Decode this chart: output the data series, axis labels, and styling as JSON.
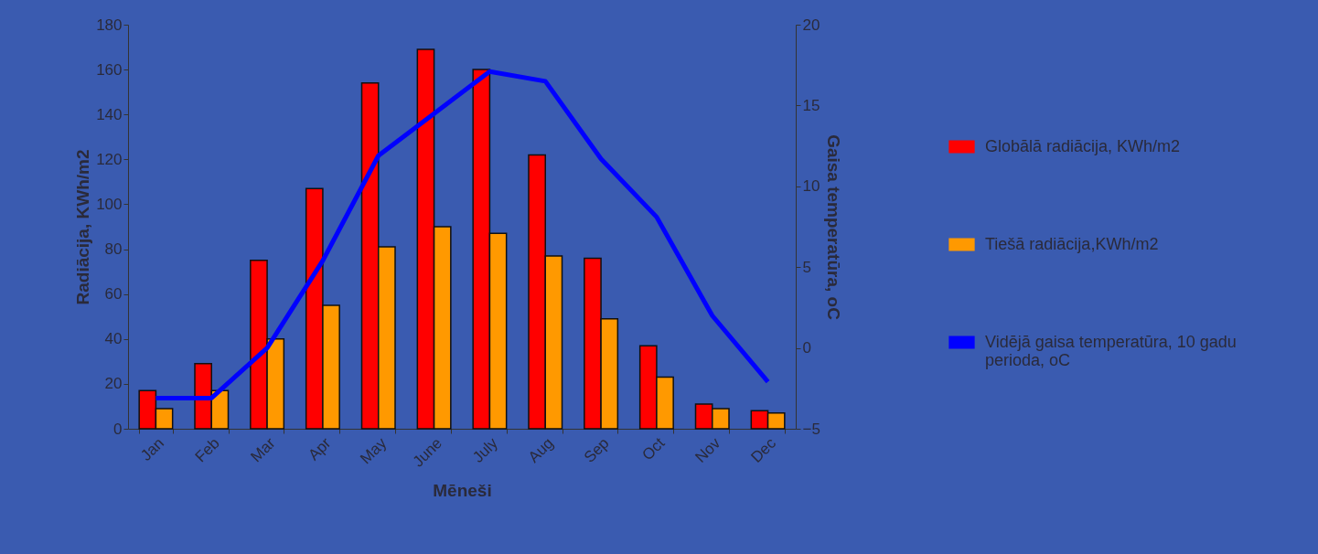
{
  "chart_data": {
    "type": "bar",
    "xlabel": "Mēneši",
    "ylabel": "Radiācija, KWh/m2",
    "y2label": "Gaisa temperatūra, oC",
    "categories": [
      "Jan",
      "Feb",
      "Mar",
      "Apr",
      "May",
      "June",
      "July",
      "Aug",
      "Sep",
      "Oct",
      "Nov",
      "Dec"
    ],
    "series": [
      {
        "name": "Globālā radiācija, KWh/m2",
        "color": "#ff0000",
        "values": [
          17,
          29,
          75,
          107,
          154,
          169,
          160,
          122,
          76,
          37,
          11,
          8
        ]
      },
      {
        "name": "Tiešā radiācija,KWh/m2",
        "color": "#ff9900",
        "values": [
          9,
          17,
          40,
          55,
          81,
          90,
          87,
          77,
          49,
          23,
          9,
          7
        ]
      },
      {
        "name": "Vidējā gaisa temperatūra, 10 gadu perioda, oC",
        "color": "#0000ff",
        "type": "line",
        "axis": "y2",
        "values": [
          -3.1,
          -3.1,
          0.0,
          5.4,
          11.9,
          14.5,
          17.1,
          16.5,
          11.7,
          8.1,
          2.0,
          -2.1
        ]
      }
    ],
    "ylim": [
      0,
      180
    ],
    "yticks": [
      0,
      20,
      40,
      60,
      80,
      100,
      120,
      140,
      160,
      180
    ],
    "y2lim": [
      -5,
      20
    ],
    "y2ticks": [
      -5,
      0,
      5,
      10,
      15,
      20
    ],
    "legend": "right"
  }
}
